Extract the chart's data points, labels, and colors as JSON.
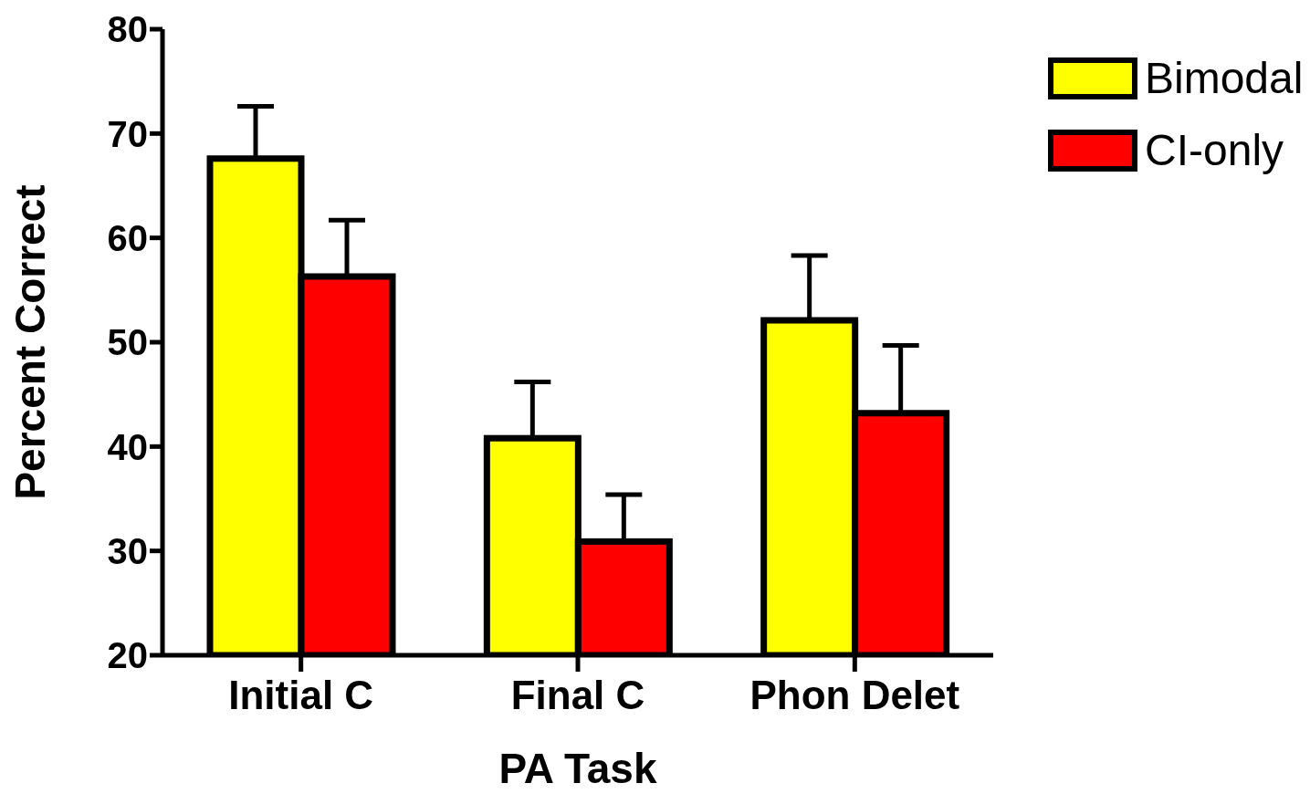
{
  "chart_data": {
    "type": "bar",
    "xlabel": "PA Task",
    "ylabel": "Percent Correct",
    "categories": [
      "Initial C",
      "Final C",
      "Phon Delet"
    ],
    "series": [
      {
        "name": "Bimodal",
        "color": "#ffff00",
        "values": [
          67.6,
          40.8,
          52.1
        ],
        "errors": [
          [
            67.6,
            72.6
          ],
          [
            40.8,
            46.2
          ],
          [
            52.1,
            58.3
          ]
        ]
      },
      {
        "name": "CI-only",
        "color": "#ff0000",
        "values": [
          56.3,
          30.9,
          43.2
        ],
        "errors": [
          [
            56.3,
            61.7
          ],
          [
            30.9,
            35.4
          ],
          [
            43.2,
            49.7
          ]
        ]
      }
    ],
    "ylim": [
      20,
      80
    ],
    "yticks": [
      20,
      30,
      40,
      50,
      60,
      70,
      80
    ],
    "grid": false,
    "legend": "top right"
  }
}
